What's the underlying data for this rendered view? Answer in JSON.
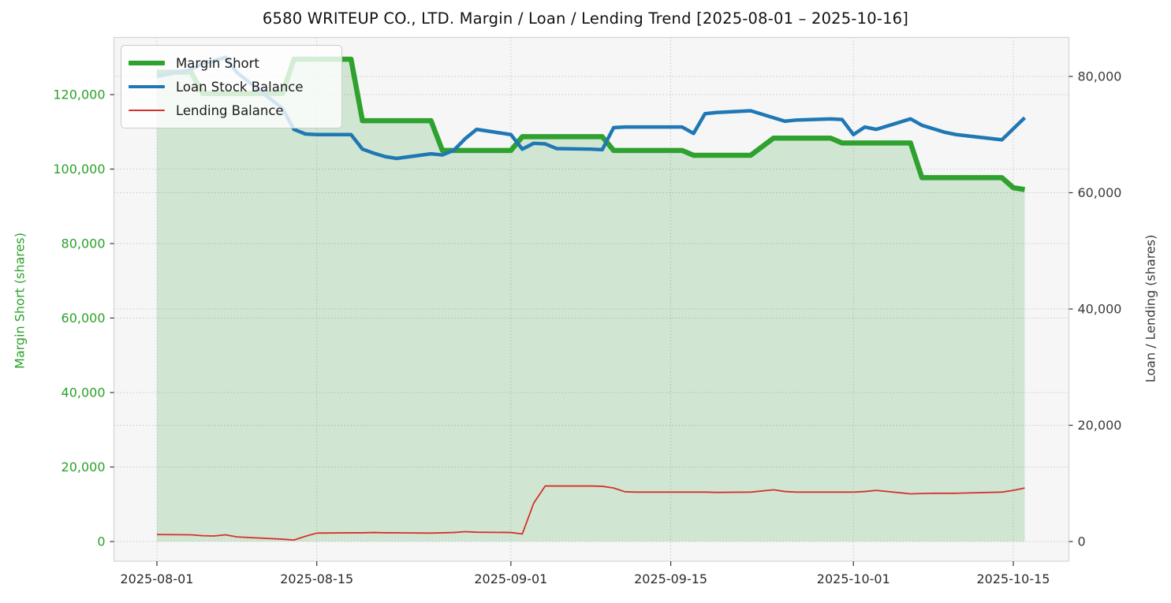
{
  "title": "6580 WRITEUP CO., LTD. Margin / Loan / Lending Trend [2025-08-01 – 2025-10-16]",
  "chart_data": {
    "type": "line",
    "title": "6580 WRITEUP CO., LTD. Margin / Loan / Lending Trend [2025-08-01 – 2025-10-16]",
    "grid": true,
    "background": {
      "figure": "#ffffff",
      "plot": "#f6f6f7",
      "gridline": "#c9c9c9",
      "spine": "#d4d4d4"
    },
    "left_axis": {
      "label": "Margin Short (shares)",
      "color": "#2ca02c",
      "ticks": [
        0,
        20000,
        40000,
        60000,
        80000,
        100000,
        120000
      ],
      "range_px_note": "0 aligned with right axis 0",
      "ylim": [
        -5300,
        135300
      ]
    },
    "right_axis": {
      "label": "Loan / Lending (shares)",
      "color": "#3a3a3a",
      "ticks": [
        0,
        20000,
        40000,
        60000,
        80000
      ],
      "ylim": [
        -3400,
        86800
      ]
    },
    "x_ticks": [
      "2025-08-01",
      "2025-08-15",
      "2025-09-01",
      "2025-09-15",
      "2025-10-01",
      "2025-10-15"
    ],
    "dates": [
      "2025-08-01",
      "2025-08-04",
      "2025-08-05",
      "2025-08-06",
      "2025-08-07",
      "2025-08-08",
      "2025-08-12",
      "2025-08-13",
      "2025-08-14",
      "2025-08-15",
      "2025-08-18",
      "2025-08-19",
      "2025-08-20",
      "2025-08-21",
      "2025-08-22",
      "2025-08-25",
      "2025-08-26",
      "2025-08-27",
      "2025-08-28",
      "2025-08-29",
      "2025-09-01",
      "2025-09-02",
      "2025-09-03",
      "2025-09-04",
      "2025-09-05",
      "2025-09-08",
      "2025-09-09",
      "2025-09-10",
      "2025-09-11",
      "2025-09-12",
      "2025-09-16",
      "2025-09-17",
      "2025-09-18",
      "2025-09-19",
      "2025-09-22",
      "2025-09-24",
      "2025-09-25",
      "2025-09-26",
      "2025-09-29",
      "2025-09-30",
      "2025-10-01",
      "2025-10-02",
      "2025-10-03",
      "2025-10-06",
      "2025-10-07",
      "2025-10-08",
      "2025-10-09",
      "2025-10-10",
      "2025-10-14",
      "2025-10-15",
      "2025-10-16"
    ],
    "series": [
      {
        "name": "Margin Short",
        "axis": "left",
        "color": "#2ea12e",
        "width": 6.5,
        "fill": "rgba(46,160,44,0.18)",
        "values": [
          126000,
          126000,
          120300,
          120300,
          120300,
          120300,
          120300,
          129500,
          129500,
          129500,
          129500,
          113000,
          113000,
          113000,
          113000,
          113000,
          105000,
          105000,
          105000,
          105000,
          105000,
          108700,
          108700,
          108700,
          108700,
          108700,
          108700,
          105000,
          105000,
          105000,
          105000,
          103700,
          103700,
          103700,
          103700,
          108300,
          108300,
          108300,
          108300,
          107000,
          107000,
          107000,
          107000,
          107000,
          97700,
          97700,
          97700,
          97700,
          97700,
          95000,
          94500
        ]
      },
      {
        "name": "Loan Stock Balance",
        "axis": "right",
        "color": "#1f77b4",
        "width": 4.5,
        "fill": null,
        "values": [
          80000,
          81200,
          82200,
          82700,
          83300,
          80700,
          74500,
          70900,
          70100,
          70000,
          70000,
          67500,
          66800,
          66200,
          65900,
          66700,
          66500,
          67300,
          69300,
          70900,
          70000,
          67500,
          68500,
          68400,
          67600,
          67500,
          67400,
          71200,
          71300,
          71300,
          71300,
          70200,
          73600,
          73800,
          74100,
          72900,
          72300,
          72500,
          72700,
          72600,
          70000,
          71300,
          70900,
          72700,
          71600,
          71000,
          70400,
          70000,
          69100,
          71000,
          72900
        ]
      },
      {
        "name": "Lending Balance",
        "axis": "right",
        "color": "#d6302c",
        "width": 1.8,
        "fill": null,
        "values": [
          1200,
          1150,
          1000,
          950,
          1150,
          800,
          400,
          250,
          900,
          1450,
          1500,
          1500,
          1550,
          1500,
          1500,
          1450,
          1500,
          1550,
          1700,
          1600,
          1550,
          1300,
          6600,
          9550,
          9550,
          9550,
          9500,
          9200,
          8550,
          8500,
          8500,
          8500,
          8500,
          8450,
          8500,
          8900,
          8600,
          8500,
          8500,
          8500,
          8500,
          8600,
          8800,
          8200,
          8250,
          8300,
          8300,
          8300,
          8500,
          8800,
          9200
        ]
      }
    ],
    "legend": {
      "position": "upper-left",
      "entries": [
        "Margin Short",
        "Loan Stock Balance",
        "Lending Balance"
      ]
    }
  }
}
